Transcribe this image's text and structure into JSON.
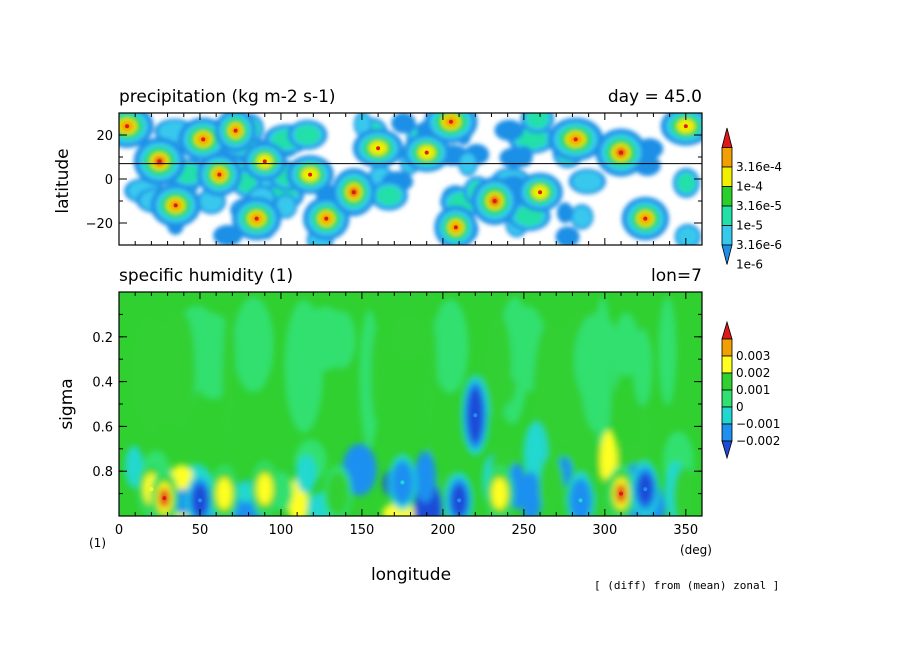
{
  "colors": {
    "cbar_precip": [
      "#1f8fe6",
      "#37c8ee",
      "#22e0a8",
      "#2acf2a",
      "#f0f000",
      "#f0a000",
      "#e01818"
    ],
    "cbar_q": [
      "#1e4bd8",
      "#1e90f0",
      "#20d8d0",
      "#30e070",
      "#30d030",
      "#ffff20",
      "#f0a000",
      "#e01818"
    ]
  },
  "chart_data": [
    {
      "type": "heatmap",
      "title": "precipitation (kg m-2 s-1)",
      "title_right": "day = 45.0",
      "ylabel": "latitude",
      "xlim": [
        0,
        360
      ],
      "ylim": [
        -30,
        30
      ],
      "yticks": [
        20,
        0,
        -20
      ],
      "ytick_labels": [
        "20",
        "0",
        "−20"
      ],
      "reference_line_lat": 7,
      "legend_placement": "right",
      "colorbar_labels": [
        "3.16e-4",
        "1e-4",
        "3.16e-5",
        "1e-5",
        "3.16e-6",
        "1e-6"
      ],
      "colorbar_levels": [
        1e-06,
        3.16e-06,
        1e-05,
        3.16e-05,
        0.0001,
        0.000316
      ],
      "features": [
        {
          "lon": 5,
          "lat": 24,
          "level": 5
        },
        {
          "lon": 25,
          "lat": 8,
          "level": 6
        },
        {
          "lon": 35,
          "lat": -12,
          "level": 5
        },
        {
          "lon": 52,
          "lat": 18,
          "level": 5
        },
        {
          "lon": 62,
          "lat": 2,
          "level": 5
        },
        {
          "lon": 72,
          "lat": 22,
          "level": 5
        },
        {
          "lon": 85,
          "lat": -18,
          "level": 5
        },
        {
          "lon": 90,
          "lat": 8,
          "level": 4
        },
        {
          "lon": 118,
          "lat": 2,
          "level": 4
        },
        {
          "lon": 128,
          "lat": -18,
          "level": 5
        },
        {
          "lon": 145,
          "lat": -6,
          "level": 6
        },
        {
          "lon": 160,
          "lat": 14,
          "level": 4
        },
        {
          "lon": 190,
          "lat": 12,
          "level": 4
        },
        {
          "lon": 205,
          "lat": 26,
          "level": 5
        },
        {
          "lon": 208,
          "lat": -22,
          "level": 5
        },
        {
          "lon": 232,
          "lat": -10,
          "level": 6
        },
        {
          "lon": 260,
          "lat": -6,
          "level": 4
        },
        {
          "lon": 282,
          "lat": 18,
          "level": 5
        },
        {
          "lon": 310,
          "lat": 12,
          "level": 6
        },
        {
          "lon": 325,
          "lat": -18,
          "level": 5
        },
        {
          "lon": 350,
          "lat": 24,
          "level": 4
        }
      ]
    },
    {
      "type": "heatmap",
      "title": "specific humidity (1)",
      "title_right": "lon=7",
      "xlabel": "longitude",
      "ylabel": "sigma",
      "xlim": [
        0,
        360
      ],
      "ylim": [
        1,
        0
      ],
      "xticks": [
        0,
        50,
        100,
        150,
        200,
        250,
        300,
        350
      ],
      "xtick_labels": [
        "0",
        "50",
        "100",
        "150",
        "200",
        "250",
        "300",
        "350"
      ],
      "yticks": [
        0.2,
        0.4,
        0.6,
        0.8
      ],
      "ytick_labels": [
        "0.2",
        "0.4",
        "0.6",
        "0.8"
      ],
      "x_unit": "(deg)",
      "y_unit": "(1)",
      "legend_placement": "right",
      "colorbar_labels": [
        "0.003",
        "0.002",
        "0.001",
        "0",
        "−0.001",
        "−0.002"
      ],
      "colorbar_levels": [
        -0.002,
        -0.001,
        0,
        0.001,
        0.002,
        0.003
      ],
      "features": [
        {
          "lon": 20,
          "sigma": 0.88,
          "value": 0.002
        },
        {
          "lon": 28,
          "sigma": 0.92,
          "value": 0.003
        },
        {
          "lon": 50,
          "sigma": 0.93,
          "value": -0.002
        },
        {
          "lon": 65,
          "sigma": 0.9,
          "value": 0.002
        },
        {
          "lon": 90,
          "sigma": 0.88,
          "value": 0.002
        },
        {
          "lon": 135,
          "sigma": 0.9,
          "value": 0.001
        },
        {
          "lon": 175,
          "sigma": 0.85,
          "value": -0.001
        },
        {
          "lon": 210,
          "sigma": 0.93,
          "value": -0.002
        },
        {
          "lon": 220,
          "sigma": 0.55,
          "value": -0.002
        },
        {
          "lon": 235,
          "sigma": 0.9,
          "value": 0.002
        },
        {
          "lon": 285,
          "sigma": 0.93,
          "value": -0.001
        },
        {
          "lon": 310,
          "sigma": 0.9,
          "value": 0.003
        },
        {
          "lon": 325,
          "sigma": 0.88,
          "value": -0.002
        }
      ]
    }
  ],
  "footer_note": "[ (diff) from (mean) zonal ]"
}
